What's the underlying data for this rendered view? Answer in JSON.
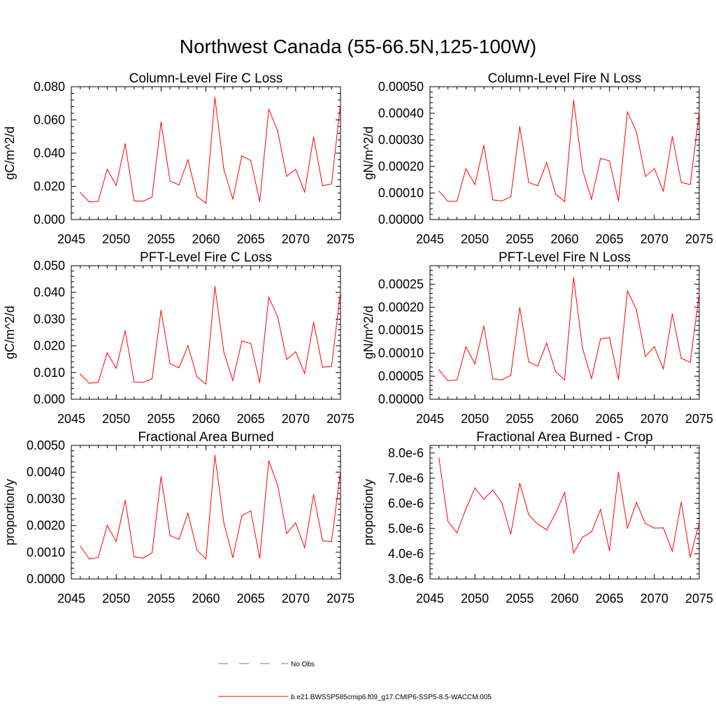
{
  "title": "Northwest Canada (55-66.5N,125-100W)",
  "colors": {
    "series": "#ff0000",
    "obs": "#6b6bd6",
    "axis": "#000000"
  },
  "legend": {
    "obs_label": "No Obs",
    "series_label": "b.e21.BWSSP585cmip6.f09_g17.CMIP6-SSP5-8.5-WACCM.005"
  },
  "chart_data": [
    {
      "type": "line",
      "title": "Column-Level Fire C Loss",
      "ylabel": "gC/m^2/d",
      "xlim": [
        2045,
        2075
      ],
      "ylim": [
        0,
        0.08
      ],
      "x_ticks": [
        "2045",
        "2050",
        "2055",
        "2060",
        "2065",
        "2070",
        "2075"
      ],
      "y_ticks": [
        "0.000",
        "0.020",
        "0.040",
        "0.060",
        "0.080"
      ],
      "x": [
        2046,
        2047,
        2048,
        2049,
        2050,
        2051,
        2052,
        2053,
        2054,
        2055,
        2056,
        2057,
        2058,
        2059,
        2060,
        2061,
        2062,
        2063,
        2064,
        2065,
        2066,
        2067,
        2068,
        2069,
        2070,
        2071,
        2072,
        2073,
        2074,
        2075
      ],
      "series": [
        {
          "values": [
            0.0162,
            0.0106,
            0.011,
            0.0303,
            0.0205,
            0.0456,
            0.0112,
            0.011,
            0.0135,
            0.0587,
            0.0232,
            0.0209,
            0.036,
            0.014,
            0.0098,
            0.0735,
            0.0302,
            0.0122,
            0.0383,
            0.0355,
            0.0108,
            0.0665,
            0.0533,
            0.026,
            0.0303,
            0.0166,
            0.0498,
            0.0203,
            0.0215,
            0.07
          ]
        }
      ]
    },
    {
      "type": "line",
      "title": "Column-Level Fire N Loss",
      "ylabel": "gN/m^2/d",
      "xlim": [
        2045,
        2075
      ],
      "ylim": [
        0,
        0.0005
      ],
      "x_ticks": [
        "2045",
        "2050",
        "2055",
        "2060",
        "2065",
        "2070",
        "2075"
      ],
      "y_ticks": [
        "0.00000",
        "0.00010",
        "0.00020",
        "0.00030",
        "0.00040",
        "0.00050"
      ],
      "x": [
        2046,
        2047,
        2048,
        2049,
        2050,
        2051,
        2052,
        2053,
        2054,
        2055,
        2056,
        2057,
        2058,
        2059,
        2060,
        2061,
        2062,
        2063,
        2064,
        2065,
        2066,
        2067,
        2068,
        2069,
        2070,
        2071,
        2072,
        2073,
        2074,
        2075
      ],
      "series": [
        {
          "values": [
            0.000107,
            6.8e-05,
            6.9e-05,
            0.000191,
            0.000132,
            0.000279,
            7.4e-05,
            7e-05,
            8.5e-05,
            0.00035,
            0.00014,
            0.000127,
            0.000215,
            9.5e-05,
            6.8e-05,
            0.000449,
            0.000187,
            7.7e-05,
            0.00023,
            0.000221,
            7e-05,
            0.000405,
            0.00033,
            0.000162,
            0.000192,
            0.000107,
            0.000313,
            0.00014,
            0.000132,
            0.000405
          ]
        }
      ]
    },
    {
      "type": "line",
      "title": "PFT-Level Fire C Loss",
      "ylabel": "gC/m^2/d",
      "xlim": [
        2045,
        2075
      ],
      "ylim": [
        0,
        0.05
      ],
      "x_ticks": [
        "2045",
        "2050",
        "2055",
        "2060",
        "2065",
        "2070",
        "2075"
      ],
      "y_ticks": [
        "0.000",
        "0.010",
        "0.020",
        "0.030",
        "0.040",
        "0.050"
      ],
      "x": [
        2046,
        2047,
        2048,
        2049,
        2050,
        2051,
        2052,
        2053,
        2054,
        2055,
        2056,
        2057,
        2058,
        2059,
        2060,
        2061,
        2062,
        2063,
        2064,
        2065,
        2066,
        2067,
        2068,
        2069,
        2070,
        2071,
        2072,
        2073,
        2074,
        2075
      ],
      "series": [
        {
          "values": [
            0.0094,
            0.006,
            0.0063,
            0.0174,
            0.0116,
            0.0257,
            0.0064,
            0.0063,
            0.0077,
            0.0333,
            0.0133,
            0.0118,
            0.0201,
            0.0084,
            0.0057,
            0.0423,
            0.0176,
            0.007,
            0.0218,
            0.0209,
            0.0062,
            0.0382,
            0.0308,
            0.0149,
            0.0178,
            0.0097,
            0.0288,
            0.012,
            0.0123,
            0.0403
          ]
        }
      ]
    },
    {
      "type": "line",
      "title": "PFT-Level Fire N Loss",
      "ylabel": "gN/m^2/d",
      "xlim": [
        2045,
        2075
      ],
      "ylim": [
        0,
        0.00029
      ],
      "x_ticks": [
        "2045",
        "2050",
        "2055",
        "2060",
        "2065",
        "2070",
        "2075"
      ],
      "y_ticks": [
        "0.00000",
        "0.00005",
        "0.00010",
        "0.00015",
        "0.00020",
        "0.00025"
      ],
      "x": [
        2046,
        2047,
        2048,
        2049,
        2050,
        2051,
        2052,
        2053,
        2054,
        2055,
        2056,
        2057,
        2058,
        2059,
        2060,
        2061,
        2062,
        2063,
        2064,
        2065,
        2066,
        2067,
        2068,
        2069,
        2070,
        2071,
        2072,
        2073,
        2074,
        2075
      ],
      "series": [
        {
          "values": [
            6.4e-05,
            4e-05,
            4.2e-05,
            0.000114,
            7.7e-05,
            0.000159,
            4.4e-05,
            4.2e-05,
            5.2e-05,
            0.000199,
            8.1e-05,
            7.2e-05,
            0.000122,
            6e-05,
            4.2e-05,
            0.000264,
            0.00011,
            4.5e-05,
            0.000131,
            0.000134,
            4.3e-05,
            0.000235,
            0.000195,
            9.3e-05,
            0.000114,
            6.6e-05,
            0.000185,
            8.9e-05,
            8e-05,
            0.00023
          ]
        }
      ]
    },
    {
      "type": "line",
      "title": "Fractional Area Burned",
      "ylabel": "proportion/y",
      "xlim": [
        2045,
        2075
      ],
      "ylim": [
        0,
        0.005
      ],
      "x_ticks": [
        "2045",
        "2050",
        "2055",
        "2060",
        "2065",
        "2070",
        "2075"
      ],
      "y_ticks": [
        "0.0000",
        "0.0010",
        "0.0020",
        "0.0030",
        "0.0040",
        "0.0050"
      ],
      "x": [
        2046,
        2047,
        2048,
        2049,
        2050,
        2051,
        2052,
        2053,
        2054,
        2055,
        2056,
        2057,
        2058,
        2059,
        2060,
        2061,
        2062,
        2063,
        2064,
        2065,
        2066,
        2067,
        2068,
        2069,
        2070,
        2071,
        2072,
        2073,
        2074,
        2075
      ],
      "series": [
        {
          "values": [
            0.00123,
            0.00075,
            0.0008,
            0.002,
            0.0014,
            0.00295,
            0.00083,
            0.00078,
            0.00098,
            0.00383,
            0.00163,
            0.00148,
            0.00246,
            0.00108,
            0.00075,
            0.00463,
            0.0021,
            0.0008,
            0.00237,
            0.00255,
            0.00077,
            0.00443,
            0.0035,
            0.0017,
            0.0021,
            0.00117,
            0.00317,
            0.00143,
            0.0014,
            0.00405
          ]
        }
      ]
    },
    {
      "type": "line",
      "title": "Fractional Area Burned - Crop",
      "ylabel": "proportion/y",
      "xlim": [
        2045,
        2075
      ],
      "ylim": [
        3e-06,
        8.3e-06
      ],
      "x_ticks": [
        "2045",
        "2050",
        "2055",
        "2060",
        "2065",
        "2070",
        "2075"
      ],
      "y_ticks": [
        "3.0e-6",
        "4.0e-6",
        "5.0e-6",
        "6.0e-6",
        "7.0e-6",
        "8.0e-6"
      ],
      "x": [
        2046,
        2047,
        2048,
        2049,
        2050,
        2051,
        2052,
        2053,
        2054,
        2055,
        2056,
        2057,
        2058,
        2059,
        2060,
        2061,
        2062,
        2063,
        2064,
        2065,
        2066,
        2067,
        2068,
        2069,
        2070,
        2071,
        2072,
        2073,
        2074,
        2075
      ],
      "series": [
        {
          "values": [
            7.8e-06,
            5.28e-06,
            4.83e-06,
            5.78e-06,
            6.61e-06,
            6.17e-06,
            6.53e-06,
            6.02e-06,
            4.78e-06,
            6.8e-06,
            5.55e-06,
            5.18e-06,
            4.95e-06,
            5.61e-06,
            6.43e-06,
            4.03e-06,
            4.66e-06,
            4.87e-06,
            5.76e-06,
            4.12e-06,
            7.24e-06,
            5.01e-06,
            6.04e-06,
            5.2e-06,
            5.02e-06,
            5.03e-06,
            4.1e-06,
            6.05e-06,
            3.86e-06,
            5.22e-06
          ]
        }
      ]
    }
  ]
}
